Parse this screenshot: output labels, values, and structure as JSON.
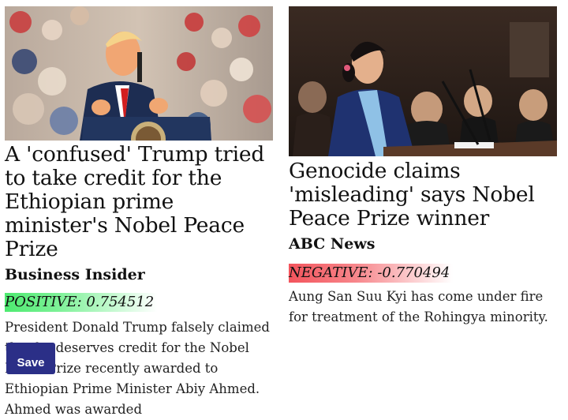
{
  "articles": [
    {
      "image_alt": "Trump speaking at a rally podium",
      "headline": "A 'confused' Trump tried to take credit for the Ethiopian prime minister's Nobel Peace Prize",
      "source": "Business Insider",
      "sentiment": "POSITIVE: 0.754512",
      "summary": "President Donald Trump falsely claimed that he deserves credit for the Nobel Peace Prize recently awarded to Ethiopian Prime Minister Abiy Ahmed. Ahmed was awarded",
      "sentiment_color": "#4dea70"
    },
    {
      "image_alt": "Aung San Suu Kyi speaking at a microphone",
      "headline": "Genocide claims 'misleading' says Nobel Peace Prize winner",
      "source": "ABC News",
      "sentiment": "NEGATIVE: -0.770494",
      "summary": "Aung San Suu Kyi has come under fire for treatment of the Rohingya minority.",
      "sentiment_color": "#f3545c"
    }
  ],
  "save_button": {
    "label": "Save"
  }
}
